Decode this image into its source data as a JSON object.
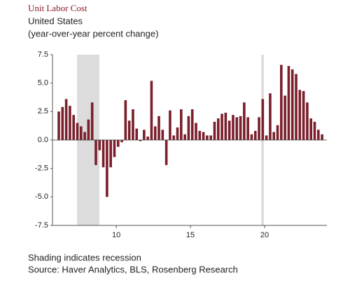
{
  "chart_data": {
    "type": "bar",
    "title": "Unit Labor Cost",
    "subtitle": "United States",
    "y_label": "(year-over-year percent change)",
    "notes": [
      "Shading indicates recession",
      "Source: Haver Analytics, BLS, Rosenberg Research"
    ],
    "color": "#7a1f2b",
    "recession_color": "#dcdcdc",
    "recessions": [
      [
        7.35,
        8.86
      ],
      [
        19.78,
        19.95
      ]
    ],
    "x": [
      6.125,
      6.375,
      6.625,
      6.875,
      7.125,
      7.375,
      7.625,
      7.875,
      8.125,
      8.375,
      8.625,
      8.875,
      9.125,
      9.375,
      9.625,
      9.875,
      10.125,
      10.375,
      10.625,
      10.875,
      11.125,
      11.375,
      11.625,
      11.875,
      12.125,
      12.375,
      12.625,
      12.875,
      13.125,
      13.375,
      13.625,
      13.875,
      14.125,
      14.375,
      14.625,
      14.875,
      15.125,
      15.375,
      15.625,
      15.875,
      16.125,
      16.375,
      16.625,
      16.875,
      17.125,
      17.375,
      17.625,
      17.875,
      18.125,
      18.375,
      18.625,
      18.875,
      19.125,
      19.375,
      19.625,
      19.875,
      20.125,
      20.375,
      20.625,
      20.875,
      21.125,
      21.375,
      21.625,
      21.875,
      22.125,
      22.375,
      22.625,
      22.875,
      23.125,
      23.375,
      23.625,
      23.875
    ],
    "values": [
      2.5,
      2.9,
      3.6,
      3.0,
      2.2,
      1.5,
      1.2,
      0.7,
      1.8,
      3.3,
      -2.2,
      -0.9,
      -2.4,
      -5.0,
      -2.4,
      -1.5,
      -0.6,
      -0.2,
      3.5,
      1.7,
      2.7,
      1.0,
      -0.1,
      0.9,
      0.3,
      5.2,
      1.2,
      2.1,
      0.9,
      -2.2,
      2.6,
      0.4,
      1.1,
      2.7,
      0.5,
      2.1,
      2.7,
      1.5,
      0.8,
      0.7,
      0.4,
      0.4,
      1.6,
      1.9,
      2.3,
      2.4,
      1.7,
      2.2,
      2.0,
      2.1,
      3.3,
      2.0,
      0.5,
      0.8,
      2.0,
      3.6,
      0.4,
      4.1,
      0.7,
      1.3,
      6.6,
      3.9,
      6.5,
      6.2,
      5.8,
      4.4,
      4.3,
      3.3,
      1.9,
      1.6,
      0.9,
      0.5
    ],
    "xlim": [
      5.7,
      24.2
    ],
    "xticks": [
      10,
      15,
      20
    ],
    "ylim": [
      -7.5,
      7.5
    ],
    "yticks": [
      {
        "value": 7.5,
        "label": "7.5"
      },
      {
        "value": 5,
        "label": "5.0"
      },
      {
        "value": 2.5,
        "label": "2.5"
      },
      {
        "value": 0,
        "label": "0.0"
      },
      {
        "value": -2.5,
        "label": "-2.5"
      },
      {
        "value": -5,
        "label": "-5.0"
      },
      {
        "value": -7.5,
        "label": "-7.5"
      }
    ]
  }
}
